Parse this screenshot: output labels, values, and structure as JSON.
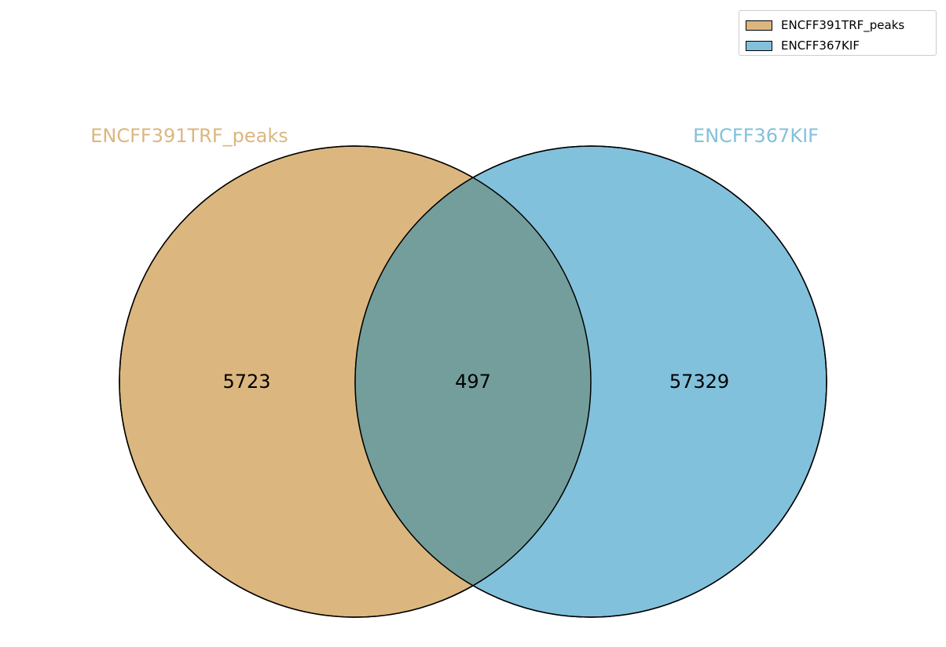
{
  "chart_data": {
    "type": "venn",
    "sets": [
      {
        "name": "ENCFF391TRF_peaks",
        "only": 5723,
        "color": "#dbb77f"
      },
      {
        "name": "ENCFF367KIF",
        "only": 57329,
        "color": "#82c1dc"
      }
    ],
    "intersection": 497,
    "overlap_color": "#749e9c",
    "legend": {
      "position": "top-right",
      "entries": [
        "ENCFF391TRF_peaks",
        "ENCFF367KIF"
      ]
    }
  }
}
